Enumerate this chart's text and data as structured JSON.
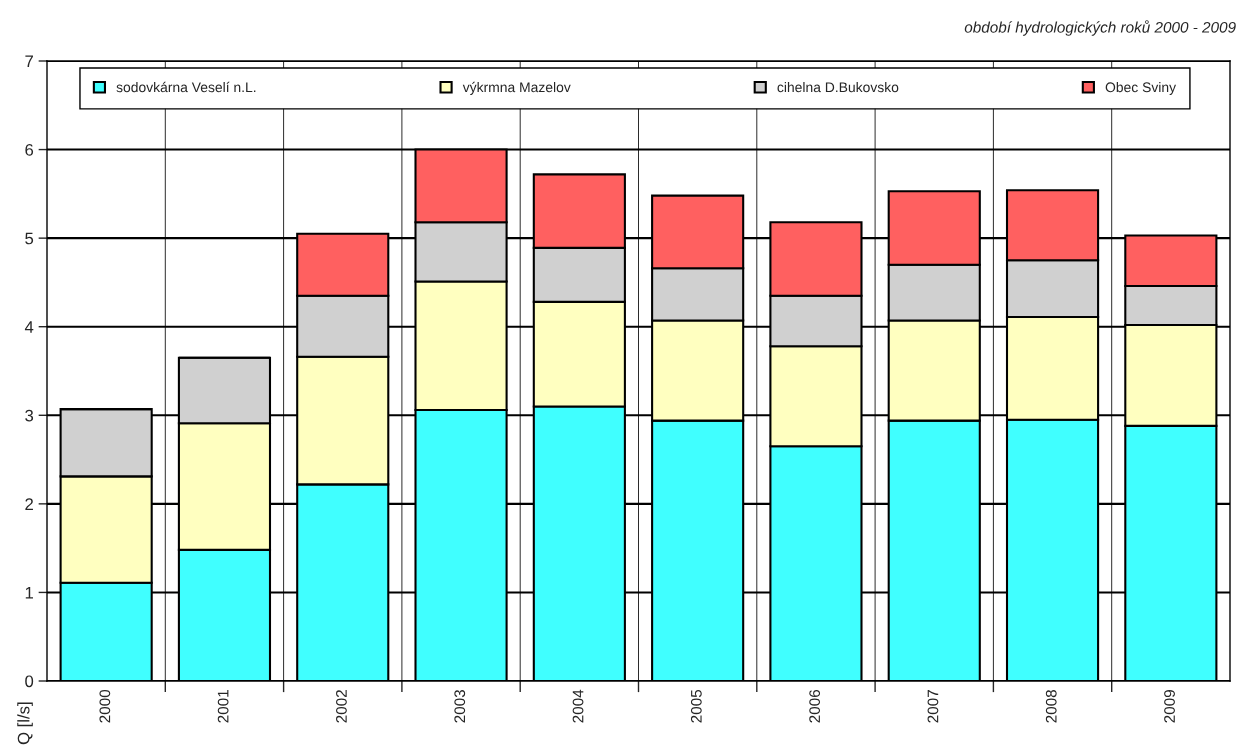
{
  "chart_data": {
    "type": "bar",
    "stacked": true,
    "title": "období hydrologických roků 2000 - 2009",
    "ylabel": "Q [l/s]",
    "categories": [
      "2000",
      "2001",
      "2002",
      "2003",
      "2004",
      "2005",
      "2006",
      "2007",
      "2008",
      "2009"
    ],
    "series": [
      {
        "name": "sodovkárna Veselí n.L.",
        "color": "#40ffff",
        "values": [
          1.11,
          1.48,
          2.22,
          3.06,
          3.1,
          2.94,
          2.65,
          2.94,
          2.95,
          2.88
        ]
      },
      {
        "name": "výkrmna Mazelov",
        "color": "#ffffc0",
        "values": [
          1.2,
          1.43,
          1.44,
          1.45,
          1.18,
          1.13,
          1.13,
          1.13,
          1.16,
          1.14
        ]
      },
      {
        "name": "cihelna D.Bukovsko",
        "color": "#d0d0d0",
        "values": [
          0.76,
          0.74,
          0.69,
          0.67,
          0.61,
          0.59,
          0.57,
          0.63,
          0.64,
          0.44
        ]
      },
      {
        "name": "Obec Sviny",
        "color": "#ff6060",
        "values": [
          null,
          null,
          0.7,
          0.82,
          0.83,
          0.82,
          0.83,
          0.83,
          0.79,
          0.57
        ]
      }
    ],
    "ylim": [
      0,
      7
    ],
    "yticks": [
      0,
      1,
      2,
      3,
      4,
      5,
      6,
      7
    ],
    "grid": true,
    "legend": "top"
  }
}
